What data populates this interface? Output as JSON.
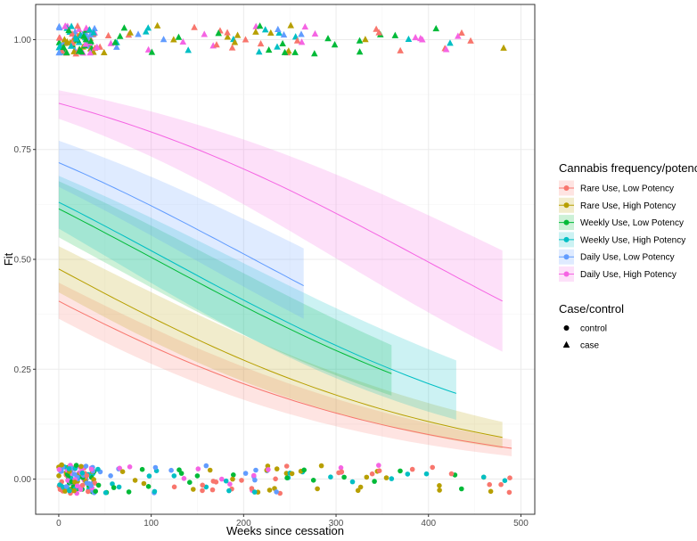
{
  "chart_data": {
    "type": "line",
    "title": "",
    "xlabel": "Weeks since cessation",
    "ylabel": "Fit",
    "xlim": [
      -25,
      515
    ],
    "ylim": [
      -0.08,
      1.08
    ],
    "x_ticks": [
      0,
      100,
      200,
      300,
      400,
      500
    ],
    "y_ticks": [
      0.0,
      0.25,
      0.5,
      0.75,
      1.0
    ],
    "y_tick_labels": [
      "0.00",
      "0.25",
      "0.50",
      "0.75",
      "1.00"
    ],
    "grid": true,
    "legend": {
      "placement": "right",
      "color_title": "Cannabis frequency/potency",
      "shape_title": "Case/control",
      "shape_entries": [
        {
          "label": "control",
          "shape": "circle"
        },
        {
          "label": "case",
          "shape": "triangle"
        }
      ]
    },
    "series": [
      {
        "name": "Rare Use, Low Potency",
        "color": "#F8766D",
        "x_range": [
          0,
          490
        ],
        "fit": [
          0.405,
          0.07
        ],
        "band_lo": [
          0.365,
          0.052
        ],
        "band_hi": [
          0.447,
          0.09
        ]
      },
      {
        "name": "Rare Use, High Potency",
        "color": "#B79F00",
        "x_range": [
          0,
          480
        ],
        "fit": [
          0.478,
          0.095
        ],
        "band_lo": [
          0.425,
          0.07
        ],
        "band_hi": [
          0.53,
          0.13
        ]
      },
      {
        "name": "Weekly Use, Low Potency",
        "color": "#00BA38",
        "x_range": [
          0,
          360
        ],
        "fit": [
          0.615,
          0.24
        ],
        "band_lo": [
          0.55,
          0.19
        ],
        "band_hi": [
          0.678,
          0.305
        ]
      },
      {
        "name": "Weekly Use, High Potency",
        "color": "#00BFC4",
        "x_range": [
          0,
          430
        ],
        "fit": [
          0.63,
          0.195
        ],
        "band_lo": [
          0.57,
          0.135
        ],
        "band_hi": [
          0.69,
          0.27
        ]
      },
      {
        "name": "Daily Use, Low Potency",
        "color": "#619CFF",
        "x_range": [
          0,
          265
        ],
        "fit": [
          0.72,
          0.44
        ],
        "band_lo": [
          0.665,
          0.365
        ],
        "band_hi": [
          0.77,
          0.525
        ]
      },
      {
        "name": "Daily Use, High Potency",
        "color": "#F564E3",
        "x_range": [
          0,
          480
        ],
        "fit": [
          0.855,
          0.405
        ],
        "band_lo": [
          0.82,
          0.29
        ],
        "band_hi": [
          0.885,
          0.52
        ]
      }
    ],
    "observed_points": {
      "case_y": 1.0,
      "control_y": 0.0,
      "note": "jittered raw observations; cases at Fit=1 (triangles), controls at Fit=0 (circles)"
    }
  }
}
